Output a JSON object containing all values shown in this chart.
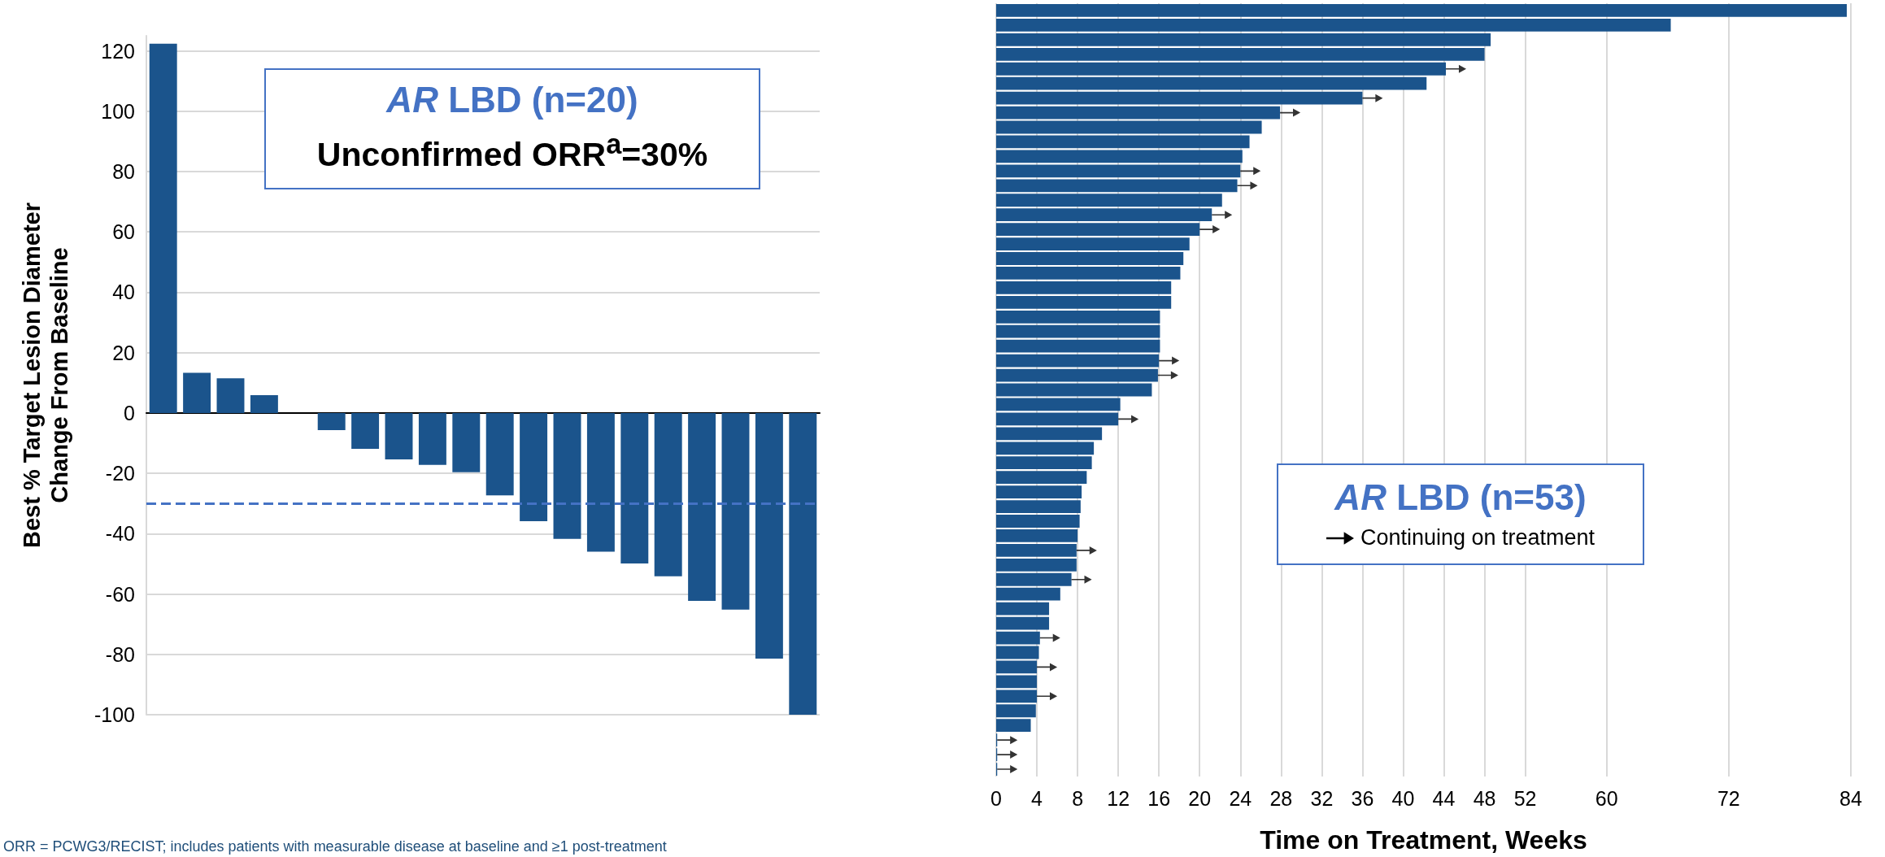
{
  "chart_data": [
    {
      "type": "bar",
      "title": "AR LBD (n=20)",
      "subtitle": "Unconfirmed ORR$^{a}$=30%",
      "ylabel": "Best % Target Lesion Diameter\nChange From Baseline",
      "categories": [
        null,
        null,
        null,
        null,
        null,
        null,
        null,
        null,
        null,
        null,
        null,
        null,
        null,
        null,
        null,
        null,
        null,
        null,
        null,
        null
      ],
      "values": [
        122.4,
        13.3,
        11.5,
        5.9,
        0,
        -5.7,
        -11.9,
        -15.4,
        -17.2,
        -19.6,
        -27.3,
        -35.9,
        -41.7,
        -46,
        -49.9,
        -54.1,
        -62.3,
        -65.2,
        -81.4,
        -100
      ],
      "color": "#1b548c",
      "ylim": [
        -100,
        125
      ],
      "yticks": [
        -100,
        -80,
        -60,
        -40,
        -20,
        0,
        20,
        40,
        60,
        80,
        100,
        120
      ],
      "grid": "y",
      "ref_lines": [
        {
          "axis": "y",
          "value": -30,
          "color": "#4472c4",
          "line_style": "dashed"
        }
      ],
      "annotations": [
        "ORR = PCWG3/RECIST; includes patients with measurable disease at baseline and ≥1 post-treatment"
      ]
    },
    {
      "type": "bar",
      "orientation": "horizontal",
      "xlabel": "Time on Treatment, Weeks",
      "legend_title": "AR LBD (n=53)",
      "legend": "right",
      "grid": "x",
      "categories": [
        null,
        null,
        null,
        null,
        null,
        null,
        null,
        null,
        null,
        null,
        null,
        null,
        null,
        null,
        null,
        null,
        null,
        null,
        null,
        null,
        null,
        null,
        null,
        null,
        null,
        null,
        null,
        null,
        null,
        null,
        null,
        null,
        null,
        null,
        null,
        null,
        null,
        null,
        null,
        null,
        null,
        null,
        null,
        null,
        null,
        null,
        null,
        null,
        null,
        null,
        null,
        null,
        null
      ],
      "series": [
        {
          "color": "#1b548c",
          "values": [
            83.6,
            66.3,
            48.6,
            48,
            44.2,
            42.3,
            36,
            27.9,
            26.1,
            24.9,
            24.2,
            24,
            23.7,
            22.2,
            21.2,
            20,
            19,
            18.4,
            18.1,
            17.2,
            17.2,
            16.1,
            16.1,
            16.1,
            16,
            15.9,
            15.3,
            12.2,
            12,
            10.4,
            9.6,
            9.4,
            8.9,
            8.4,
            8.3,
            8.2,
            8,
            7.9,
            7.9,
            7.4,
            6.3,
            5.2,
            5.2,
            4.3,
            4.2,
            4,
            4,
            4,
            3.9,
            3.4,
            0.1,
            0.1,
            0.1
          ]
        },
        {
          "name": "Continuing on treatment",
          "type": "scatter",
          "color": "#000000",
          "values": [
            null,
            null,
            null,
            null,
            45.2,
            null,
            37,
            28.9,
            null,
            null,
            null,
            25,
            24.7,
            null,
            22.2,
            21,
            null,
            null,
            null,
            null,
            null,
            null,
            null,
            null,
            17,
            16.9,
            null,
            null,
            13,
            null,
            null,
            null,
            null,
            null,
            null,
            null,
            null,
            8.9,
            null,
            8.4,
            null,
            null,
            null,
            5.3,
            null,
            5,
            null,
            5,
            null,
            null,
            1.1,
            1.1,
            1.1
          ]
        }
      ],
      "xlim": [
        0,
        84
      ],
      "xticks": [
        0,
        4,
        8,
        12,
        16,
        20,
        24,
        28,
        32,
        36,
        40,
        44,
        48,
        52,
        60,
        72,
        84
      ]
    }
  ]
}
